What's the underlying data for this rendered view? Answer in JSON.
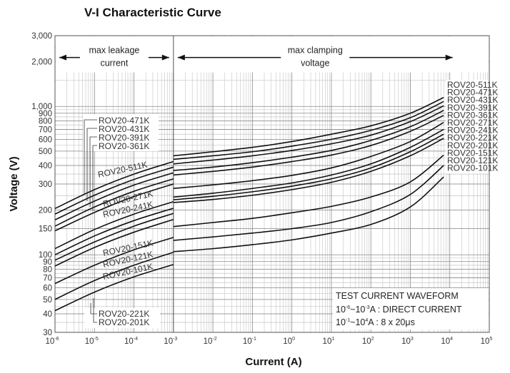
{
  "chart_data": {
    "type": "line",
    "title": "V-I Characteristic Curve",
    "xlabel": "Current (A)",
    "ylabel": "Voltage (V)",
    "x_scale": "log",
    "y_scale": "log",
    "xlim": [
      1e-06,
      100000
    ],
    "ylim": [
      30,
      3000
    ],
    "x_ticks": [
      {
        "base": "10",
        "exp": "-6"
      },
      {
        "base": "10",
        "exp": "-5"
      },
      {
        "base": "10",
        "exp": "-4"
      },
      {
        "base": "10",
        "exp": "-3"
      },
      {
        "base": "10",
        "exp": "-2"
      },
      {
        "base": "10",
        "exp": "-1"
      },
      {
        "base": "10",
        "exp": "0"
      },
      {
        "base": "10",
        "exp": "1"
      },
      {
        "base": "10",
        "exp": "2"
      },
      {
        "base": "10",
        "exp": "3"
      },
      {
        "base": "10",
        "exp": "4"
      },
      {
        "base": "10",
        "exp": "5"
      }
    ],
    "y_ticks": [
      "30",
      "40",
      "50",
      "60",
      "70",
      "80",
      "90",
      "100",
      "150",
      "200",
      "300",
      "400",
      "500",
      "600",
      "700",
      "800",
      "900",
      "1,000",
      "2,000",
      "3,000"
    ],
    "grid": true,
    "regions": [
      {
        "label_line1": "max leakage",
        "label_line2": "current",
        "x_range": [
          1e-06,
          0.001
        ]
      },
      {
        "label_line1": "max clamping",
        "label_line2": "voltage",
        "x_range": [
          0.001,
          10000
        ]
      }
    ],
    "series": [
      {
        "name": "ROV20-511K",
        "leakage": {
          "x": [
            1e-06,
            1e-05,
            0.0001,
            0.001
          ],
          "y": [
            205,
            275,
            350,
            425
          ]
        },
        "clamping": {
          "x": [
            0.001,
            0.01,
            0.1,
            1,
            10,
            100,
            1000,
            7000
          ],
          "y": [
            465,
            495,
            530,
            580,
            650,
            740,
            900,
            1150
          ]
        }
      },
      {
        "name": "ROV20-471K",
        "leakage": {
          "x": [
            1e-06,
            1e-05,
            0.0001,
            0.001
          ],
          "y": [
            188,
            252,
            322,
            390
          ]
        },
        "clamping": {
          "x": [
            0.001,
            0.01,
            0.1,
            1,
            10,
            100,
            1000,
            7000
          ],
          "y": [
            440,
            465,
            495,
            540,
            600,
            690,
            840,
            1080
          ]
        }
      },
      {
        "name": "ROV20-431K",
        "leakage": {
          "x": [
            1e-06,
            1e-05,
            0.0001,
            0.001
          ],
          "y": [
            172,
            230,
            295,
            357
          ]
        },
        "clamping": {
          "x": [
            0.001,
            0.01,
            0.1,
            1,
            10,
            100,
            1000,
            7000
          ],
          "y": [
            410,
            435,
            465,
            505,
            560,
            640,
            790,
            1010
          ]
        }
      },
      {
        "name": "ROV20-391K",
        "leakage": {
          "x": [
            1e-06,
            1e-05,
            0.0001,
            0.001
          ],
          "y": [
            156,
            210,
            268,
            325
          ]
        },
        "clamping": {
          "x": [
            0.001,
            0.01,
            0.1,
            1,
            10,
            100,
            1000,
            7000
          ],
          "y": [
            370,
            390,
            418,
            455,
            505,
            590,
            730,
            940
          ]
        }
      },
      {
        "name": "ROV20-361K",
        "leakage": {
          "x": [
            1e-06,
            1e-05,
            0.0001,
            0.001
          ],
          "y": [
            145,
            193,
            247,
            300
          ]
        },
        "clamping": {
          "x": [
            0.001,
            0.01,
            0.1,
            1,
            10,
            100,
            1000,
            7000
          ],
          "y": [
            345,
            365,
            390,
            425,
            470,
            545,
            680,
            870
          ]
        }
      },
      {
        "name": "ROV20-271K",
        "leakage": {
          "x": [
            1e-06,
            1e-05,
            0.0001,
            0.001
          ],
          "y": [
            110,
            148,
            188,
            228
          ]
        },
        "clamping": {
          "x": [
            0.001,
            0.01,
            0.1,
            1,
            10,
            100,
            1000,
            7000
          ],
          "y": [
            280,
            296,
            316,
            343,
            385,
            460,
            580,
            780
          ]
        }
      },
      {
        "name": "ROV20-241K",
        "leakage": {
          "x": [
            1e-06,
            1e-05,
            0.0001,
            0.001
          ],
          "y": [
            100,
            134,
            170,
            206
          ]
        },
        "clamping": {
          "x": [
            0.001,
            0.01,
            0.1,
            1,
            10,
            100,
            1000,
            7000
          ],
          "y": [
            245,
            260,
            280,
            305,
            345,
            410,
            530,
            700
          ]
        }
      },
      {
        "name": "ROV20-221K",
        "leakage": {
          "x": [
            1e-06,
            1e-05,
            0.0001,
            0.001
          ],
          "y": [
            92,
            122,
            156,
            190
          ]
        },
        "clamping": {
          "x": [
            0.001,
            0.01,
            0.1,
            1,
            10,
            100,
            1000,
            7000
          ],
          "y": [
            235,
            248,
            266,
            290,
            325,
            385,
            495,
            650
          ]
        }
      },
      {
        "name": "ROV20-201K",
        "leakage": {
          "x": [
            1e-06,
            1e-05,
            0.0001,
            0.001
          ],
          "y": [
            84,
            112,
            142,
            173
          ]
        },
        "clamping": {
          "x": [
            0.001,
            0.01,
            0.1,
            1,
            10,
            100,
            1000,
            7000
          ],
          "y": [
            225,
            236,
            252,
            275,
            308,
            365,
            465,
            610
          ]
        }
      },
      {
        "name": "ROV20-151K",
        "leakage": {
          "x": [
            1e-06,
            1e-05,
            0.0001,
            0.001
          ],
          "y": [
            64,
            85,
            108,
            131
          ]
        },
        "clamping": {
          "x": [
            0.001,
            0.01,
            0.1,
            1,
            10,
            100,
            1000,
            7000
          ],
          "y": [
            155,
            165,
            176,
            192,
            212,
            245,
            310,
            470
          ]
        }
      },
      {
        "name": "ROV20-121K",
        "leakage": {
          "x": [
            1e-06,
            1e-05,
            0.0001,
            0.001
          ],
          "y": [
            50,
            67,
            85,
            104
          ]
        },
        "clamping": {
          "x": [
            0.001,
            0.01,
            0.1,
            1,
            10,
            100,
            1000,
            7000
          ],
          "y": [
            125,
            132,
            140,
            150,
            165,
            195,
            255,
            400
          ]
        }
      },
      {
        "name": "ROV20-101K",
        "leakage": {
          "x": [
            1e-06,
            1e-05,
            0.0001,
            0.001
          ],
          "y": [
            42,
            56,
            71,
            86
          ]
        },
        "clamping": {
          "x": [
            0.001,
            0.01,
            0.1,
            1,
            10,
            100,
            1000,
            7000
          ],
          "y": [
            105,
            110,
            117,
            126,
            140,
            160,
            210,
            335
          ]
        }
      }
    ],
    "left_labels": [
      "ROV20-471K",
      "ROV20-431K",
      "ROV20-391K",
      "ROV20-361K",
      "ROV20-511K",
      "ROV20-271K",
      "ROV20-241K",
      "ROV20-151K",
      "ROV20-121K",
      "ROV20-101K",
      "ROV20-221K",
      "ROV20-201K"
    ],
    "right_labels": [
      "ROV20-511K",
      "ROV20-471K",
      "ROV20-431K",
      "ROV20-391K",
      "ROV20-361K",
      "ROV20-271K",
      "ROV20-241K",
      "ROV20-221K",
      "ROV20-201K",
      "ROV20-151K",
      "ROV20-121K",
      "ROV20-101K"
    ],
    "annotation": {
      "line1": "TEST CURRENT WAVEFORM",
      "line2": {
        "a": "10",
        "a_exp": "-6",
        "b": "~10",
        "b_exp": "-3",
        "rest": "A : DIRECT CURRENT"
      },
      "line3": {
        "a": "10",
        "a_exp": "-1",
        "b": "~10",
        "b_exp": "4",
        "rest": "A : 8 x 20μs"
      }
    }
  }
}
